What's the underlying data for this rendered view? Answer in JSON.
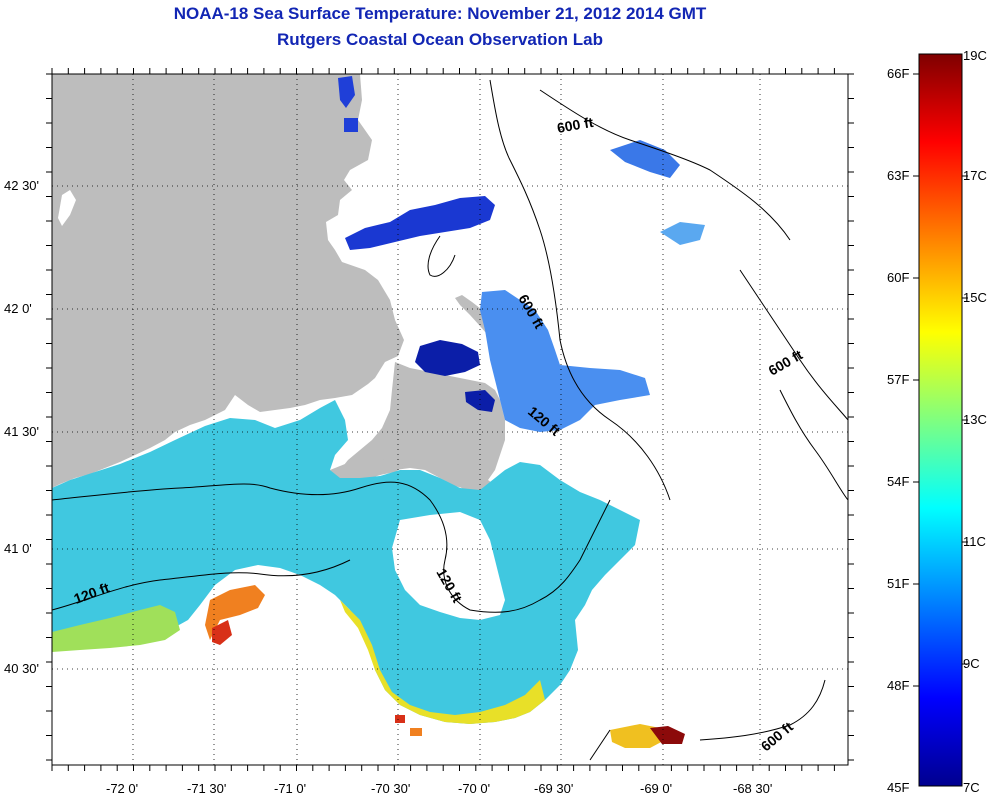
{
  "header": {
    "title": "NOAA-18 Sea Surface Temperature:  November 21, 2012 2014 GMT",
    "subtitle": "Rutgers Coastal Ocean Observation Lab"
  },
  "map": {
    "lat_labels": [
      "42 30'",
      "42 0'",
      "41 30'",
      "41 0'",
      "40 30'"
    ],
    "lon_labels": [
      "-72 0'",
      "-71 30'",
      "-71 0'",
      "-70 30'",
      "-70 0'",
      "-69 30'",
      "-69 0'",
      "-68 30'"
    ],
    "contour_labels": [
      "600 ft",
      "600 ft",
      "600 ft",
      "600 ft",
      "120 ft",
      "120 ft",
      "120 ft"
    ],
    "land_color": "#bdbdbd",
    "no_data_color": "#ffffff"
  },
  "colorbar": {
    "fahrenheit_labels": [
      "66F",
      "63F",
      "60F",
      "57F",
      "54F",
      "51F",
      "48F",
      "45F"
    ],
    "celsius_labels": [
      "19C",
      "17C",
      "15C",
      "13C",
      "11C",
      "9C",
      "7C"
    ],
    "colors": [
      "#7f0000",
      "#ff0000",
      "#ffff00",
      "#00ffff",
      "#0000ff",
      "#00008f"
    ]
  }
}
